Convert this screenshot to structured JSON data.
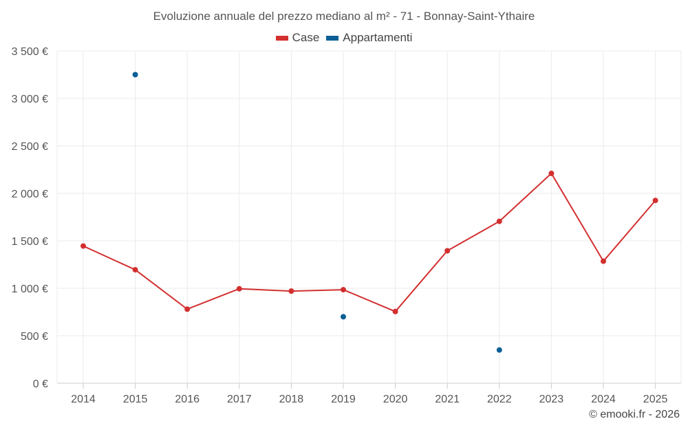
{
  "chart_data": {
    "type": "line",
    "title": "Evoluzione annuale del prezzo mediano al m² - 71 - Bonnay-Saint-Ythaire",
    "x": [
      2014,
      2015,
      2016,
      2017,
      2018,
      2019,
      2020,
      2021,
      2022,
      2023,
      2024,
      2025
    ],
    "x_tick_labels": [
      "2014",
      "2015",
      "2016",
      "2017",
      "2018",
      "2019",
      "2020",
      "2021",
      "2022",
      "2023",
      "2024",
      "2025"
    ],
    "y_tick_labels": [
      "0 €",
      "500 €",
      "1 000 €",
      "1 500 €",
      "2 000 €",
      "2 500 €",
      "3 000 €",
      "3 500 €"
    ],
    "y_ticks": [
      0,
      500,
      1000,
      1500,
      2000,
      2500,
      3000,
      3500
    ],
    "ylim": [
      0,
      3500
    ],
    "grid": true,
    "legend_position": "top-center",
    "series": [
      {
        "name": "Case",
        "color": "#d32f2f",
        "connected": true,
        "values": [
          1445,
          1195,
          780,
          995,
          970,
          985,
          755,
          1395,
          1705,
          2210,
          1285,
          1925
        ]
      },
      {
        "name": "Appartamenti",
        "color": "#0b5f96",
        "connected": false,
        "values": [
          null,
          3250,
          null,
          null,
          null,
          700,
          null,
          null,
          350,
          null,
          null,
          null
        ]
      }
    ]
  },
  "footer": {
    "credit": "© emooki.fr - 2026"
  }
}
